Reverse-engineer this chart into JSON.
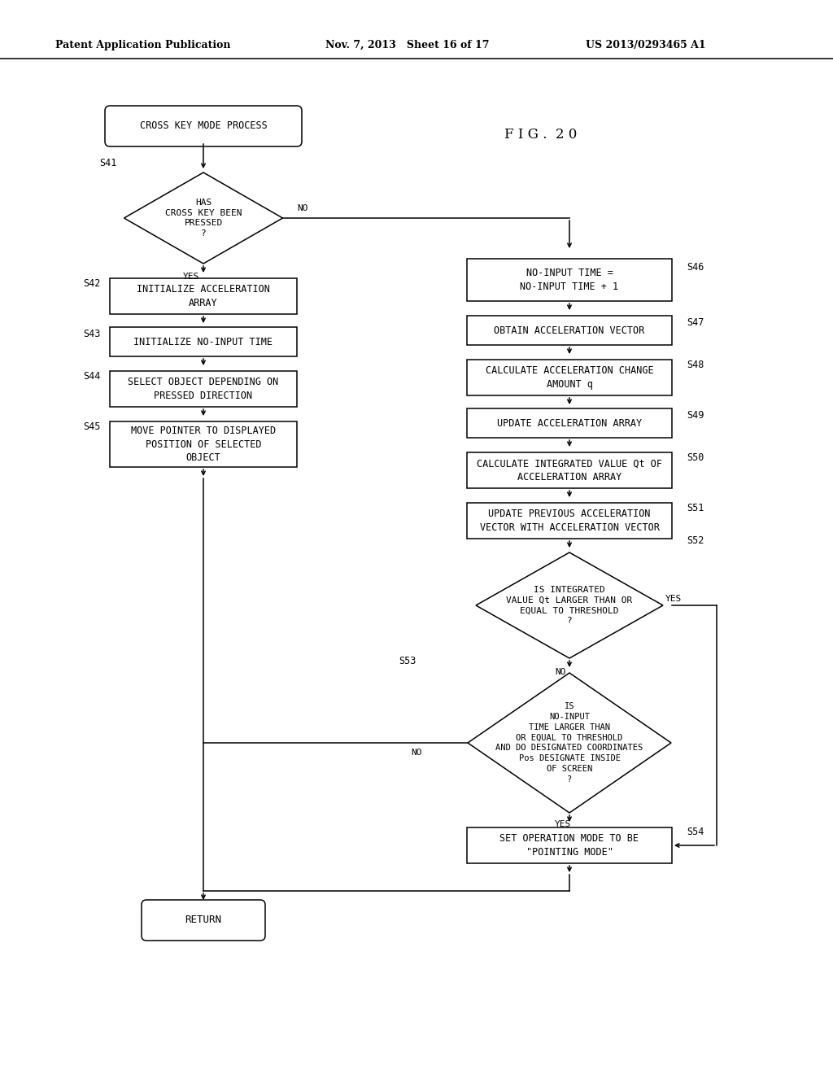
{
  "bg_color": "#ffffff",
  "fig_width": 10.24,
  "fig_height": 13.2,
  "lw": 1.1,
  "arrow_ms": 8,
  "font_mono": "DejaVu Sans Mono",
  "font_serif": "DejaVu Serif",
  "header1": "Patent Application Publication",
  "header2": "Nov. 7, 2013   Sheet 16 of 17",
  "header3": "US 2013/0293465 A1",
  "fig_label": "F I G .  2 0"
}
